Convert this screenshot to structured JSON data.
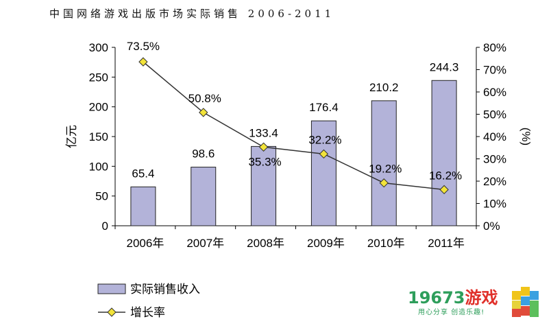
{
  "title": "中国网络游戏出版市场实际销售 2006-2011",
  "chart_data": {
    "type": "bar+line",
    "title": "中国网络游戏出版市场实际销售 2006-2011",
    "categories": [
      "2006年",
      "2007年",
      "2008年",
      "2009年",
      "2010年",
      "2011年"
    ],
    "series": [
      {
        "name": "实际销售收入",
        "type": "bar",
        "axis": "left",
        "values": [
          65.4,
          98.6,
          133.4,
          176.4,
          210.2,
          244.3
        ],
        "labels": [
          "65.4",
          "98.6",
          "133.4",
          "176.4",
          "210.2",
          "244.3"
        ],
        "color": "#b3b3d9"
      },
      {
        "name": "增长率",
        "type": "line",
        "axis": "right",
        "values": [
          73.5,
          50.8,
          35.3,
          32.2,
          19.2,
          16.2
        ],
        "labels": [
          "73.5%",
          "50.8%",
          "35.3%",
          "32.2%",
          "19.2%",
          "16.2%"
        ],
        "color": "#333333",
        "marker_color": "#f2e33a"
      }
    ],
    "ylabel": "亿元",
    "ylabel_right": "(%)",
    "ylim": [
      0,
      300
    ],
    "ylim_right": [
      0,
      80
    ],
    "yticks": [
      "0",
      "50",
      "100",
      "150",
      "200",
      "250",
      "300"
    ],
    "yticks_right": [
      "0%",
      "10%",
      "20%",
      "30%",
      "40%",
      "50%",
      "60%",
      "70%",
      "80%"
    ],
    "grid": false,
    "legend": "bottom-left"
  },
  "logo": {
    "name": "19673",
    "name_suffix": "游戏",
    "slogan": "用心分享 创造乐趣!"
  }
}
